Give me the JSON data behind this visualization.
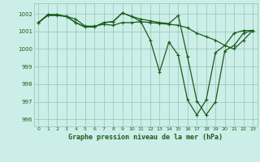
{
  "title": "Graphe pression niveau de la mer (hPa)",
  "bg_color": "#cceee8",
  "grid_color": "#99ccbb",
  "line_color": "#1a5c1a",
  "marker_color": "#1a5c1a",
  "xlim": [
    -0.5,
    23.5
  ],
  "ylim": [
    995.6,
    1002.6
  ],
  "yticks": [
    996,
    997,
    998,
    999,
    1000,
    1001,
    1002
  ],
  "xticks": [
    0,
    1,
    2,
    3,
    4,
    5,
    6,
    7,
    8,
    9,
    10,
    11,
    12,
    13,
    14,
    15,
    16,
    17,
    18,
    19,
    20,
    21,
    22,
    23
  ],
  "series": [
    [
      1001.5,
      1001.9,
      1001.9,
      1001.85,
      1001.7,
      1001.3,
      1001.3,
      1001.4,
      1001.35,
      1001.5,
      1001.5,
      1001.55,
      1001.5,
      1001.45,
      1001.4,
      1001.35,
      1001.2,
      1000.9,
      1000.7,
      1000.5,
      1000.2,
      1000.0,
      1000.5,
      1001.05
    ],
    [
      1001.5,
      1001.95,
      1001.95,
      1001.85,
      1001.5,
      1001.25,
      1001.25,
      1001.5,
      1001.55,
      1002.05,
      1001.85,
      1001.7,
      1001.6,
      1001.5,
      1001.45,
      1001.9,
      999.55,
      997.05,
      996.25,
      997.0,
      999.9,
      1000.2,
      1000.9,
      1001.05
    ],
    [
      1001.5,
      1001.95,
      1001.95,
      1001.85,
      1001.5,
      1001.25,
      1001.25,
      1001.5,
      1001.55,
      1002.05,
      1001.85,
      1001.55,
      1000.5,
      998.7,
      1000.4,
      999.65,
      997.1,
      996.25,
      997.1,
      999.8,
      1000.2,
      1000.9,
      1001.05,
      1001.05
    ]
  ]
}
